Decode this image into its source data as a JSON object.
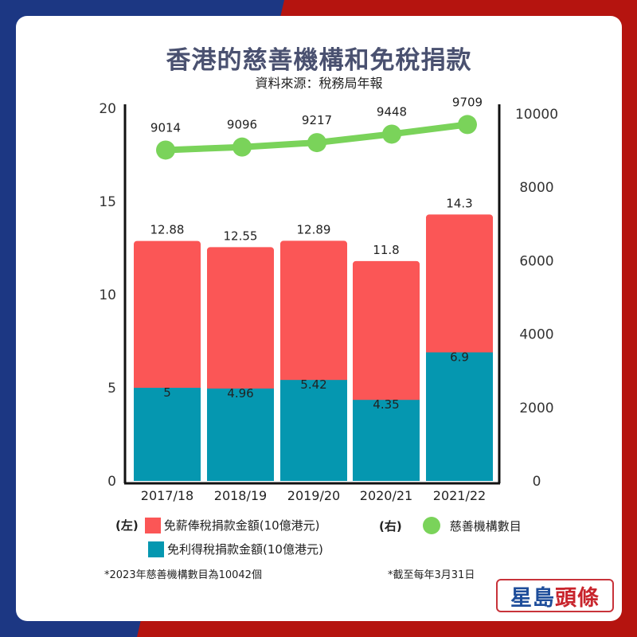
{
  "title": "香港的慈善機構和免稅捐款",
  "subtitle": "資料來源：稅務局年報",
  "colors": {
    "salary_tax": "#fb5656",
    "profits_tax": "#0597b0",
    "charities": "#7ad35a",
    "bg_blue": "#1c3783",
    "bg_red": "#b5140f",
    "title": "#4a5170"
  },
  "chart_data": {
    "type": "bar+line",
    "title": "香港的慈善機構和免稅捐款",
    "subtitle": "資料來源：稅務局年報",
    "categories": [
      "2017/18",
      "2018/19",
      "2019/20",
      "2020/21",
      "2021/22"
    ],
    "series": [
      {
        "name": "免薪俸稅捐款金額(10億港元)",
        "axis": "left",
        "type": "bar",
        "total_labels": [
          12.88,
          12.55,
          12.89,
          11.8,
          14.3
        ]
      },
      {
        "name": "免利得稅捐款金額(10億港元)",
        "axis": "left",
        "type": "bar",
        "values": [
          5,
          4.96,
          5.42,
          4.35,
          6.9
        ]
      },
      {
        "name": "慈善機構數目",
        "axis": "right",
        "type": "line",
        "values": [
          9014,
          9096,
          9217,
          9448,
          9709
        ]
      }
    ],
    "left_axis": {
      "ticks": [
        "0",
        "5",
        "10",
        "15",
        "20"
      ],
      "ylim": [
        0,
        20
      ]
    },
    "right_axis": {
      "ticks": [
        "0",
        "2000",
        "4000",
        "6000",
        "8000",
        "10000"
      ],
      "ylim": [
        0,
        10000
      ]
    },
    "grid": false,
    "legend_position": "bottom"
  },
  "legend": {
    "left_tag": "(左)",
    "right_tag": "(右)",
    "salary_label": "免薪俸稅捐款金額(10億港元)",
    "profits_label": "免利得稅捐款金額(10億港元)",
    "charities_label": "慈善機構數目"
  },
  "notes": {
    "note1": "*2023年慈善機構數目為10042個",
    "note2": "*截至每年3月31日"
  },
  "logo": {
    "part1": "星島",
    "part2": "頭條"
  }
}
